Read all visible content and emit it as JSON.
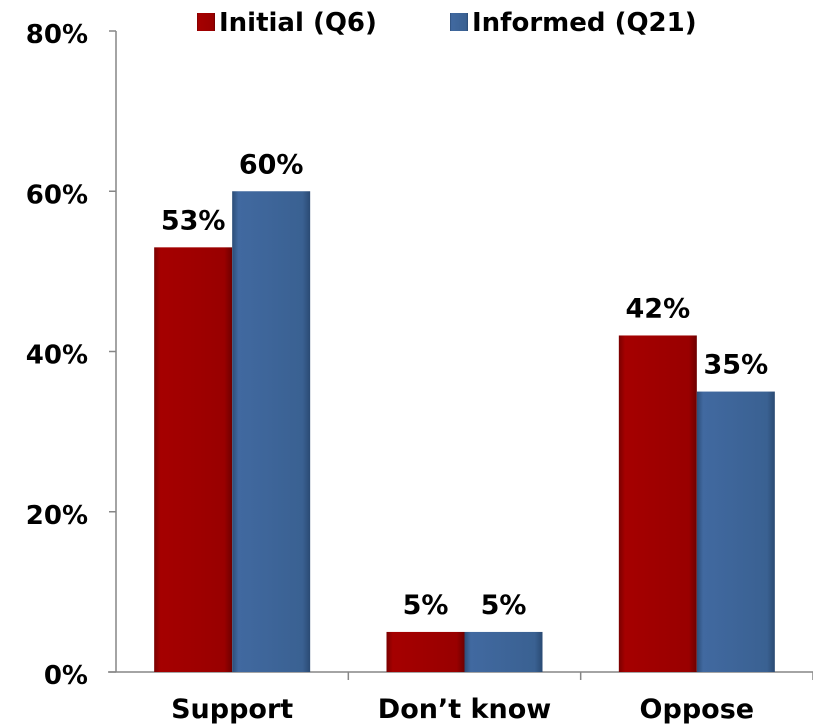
{
  "chart_data": {
    "type": "bar",
    "categories": [
      "Support",
      "Don’t know",
      "Oppose"
    ],
    "series": [
      {
        "name": "Initial (Q6)",
        "values": [
          53,
          5,
          42
        ],
        "labels": [
          "53%",
          "5%",
          "42%"
        ],
        "color": "#990000"
      },
      {
        "name": "Informed (Q21)",
        "values": [
          60,
          5,
          35
        ],
        "labels": [
          "60%",
          "5%",
          "35%"
        ],
        "color": "#3A6192"
      }
    ],
    "ylim": [
      0,
      80
    ],
    "yticks": [
      0,
      20,
      40,
      60,
      80
    ],
    "ytick_labels": [
      "0%",
      "20%",
      "40%",
      "60%",
      "80%"
    ],
    "grid": false,
    "legend_position": "top"
  }
}
